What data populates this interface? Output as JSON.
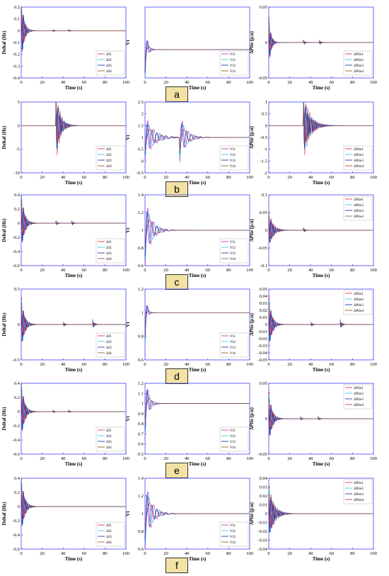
{
  "colors": [
    "#e6194b",
    "#22c7e8",
    "#1a1ab0",
    "#a0461e"
  ],
  "colors_v": [
    "#c21fc2",
    "#22c7e8",
    "#1a1ab0",
    "#a0461e"
  ],
  "rows": [
    {
      "tag": "a",
      "panels": [
        {
          "kind": "freq",
          "ylim": [
            -0.4,
            0.2
          ],
          "yticks": [
            -0.4,
            -0.3,
            -0.2,
            -0.1,
            0,
            0.1,
            0.2
          ],
          "ylabel": "Deltaf (Hz)",
          "xlabel": "Time (s)",
          "legend": [
            "Δf1",
            "Δf2",
            "Δf3",
            "Δf4"
          ],
          "events": [
            {
              "t": 0,
              "a": 0.35,
              "tau": 2.5
            },
            {
              "t": 30,
              "a": 0.015,
              "tau": 1.5
            },
            {
              "t": 45,
              "a": 0.015,
              "tau": 1.5
            }
          ]
        },
        {
          "kind": "volt",
          "ylim": [
            0.6,
            1.6
          ],
          "yticks": [],
          "ylabel": "Vt",
          "xlabel": "Time (s)",
          "legend": [
            "Vt1",
            "Vt2",
            "Vt3",
            "Vt4"
          ],
          "events": [
            {
              "t": 0,
              "a": 0.45,
              "tau": 2
            }
          ]
        },
        {
          "kind": "ptie",
          "ylim": [
            -0.05,
            0.05
          ],
          "yticks": [
            -0.05,
            0,
            0.05
          ],
          "ylabel": "ΔPtie (p.u)",
          "xlabel": "Time (s)",
          "legend": [
            "ΔPtie1",
            "ΔPtie2",
            "ΔPtie3",
            "ΔPtie4"
          ],
          "events": [
            {
              "t": 0,
              "a": 0.045,
              "tau": 2
            },
            {
              "t": 33,
              "a": 0.005,
              "tau": 1.5
            },
            {
              "t": 48,
              "a": 0.005,
              "tau": 1.5
            }
          ]
        }
      ]
    },
    {
      "tag": "b",
      "panels": [
        {
          "kind": "freq",
          "ylim": [
            -10,
            5
          ],
          "yticks": [
            -10,
            -5,
            0,
            5
          ],
          "ylabel": "Deltaf (Hz)",
          "xlabel": "Time (s)",
          "legend": [
            "Δf1",
            "Δf2",
            "Δf3",
            "Δf4"
          ],
          "events": [
            {
              "t": 33,
              "a": 9,
              "tau": 4
            }
          ]
        },
        {
          "kind": "volt",
          "ylim": [
            -0.5,
            2.5
          ],
          "yticks": [
            -0.5,
            0,
            0.5,
            1,
            1.5,
            2,
            2.5
          ],
          "ylabel": "Vt",
          "xlabel": "Time (s)",
          "legend": [
            "Vt1",
            "Vt2",
            "Vt3",
            "Vt4"
          ],
          "events": [
            {
              "t": 0,
              "a": 1,
              "tau": 8
            },
            {
              "t": 33,
              "a": 1.1,
              "tau": 6
            }
          ]
        },
        {
          "kind": "ptie",
          "ylim": [
            -2,
            1
          ],
          "yticks": [
            -2,
            -1.5,
            -1,
            -0.5,
            0,
            0.5,
            1
          ],
          "ylabel": "ΔPtie (p.u)",
          "xlabel": "Time (s)",
          "legend": [
            "ΔPtie1",
            "ΔPtie2",
            "ΔPtie3",
            "ΔPtie4"
          ],
          "events": [
            {
              "t": 33,
              "a": 1.6,
              "tau": 6
            }
          ]
        }
      ]
    },
    {
      "tag": "c",
      "panels": [
        {
          "kind": "freq",
          "ylim": [
            -0.6,
            0.4
          ],
          "yticks": [
            -0.6,
            -0.4,
            -0.2,
            0,
            0.2,
            0.4
          ],
          "ylabel": "Deltaf (Hz)",
          "xlabel": "Time (s)",
          "legend": [
            "Δf1",
            "Δf2",
            "Δf3",
            "Δf4"
          ],
          "events": [
            {
              "t": 0,
              "a": 0.5,
              "tau": 3
            },
            {
              "t": 33,
              "a": 0.05,
              "tau": 1.5
            },
            {
              "t": 48,
              "a": 0.05,
              "tau": 1.5
            }
          ]
        },
        {
          "kind": "volt",
          "ylim": [
            0.6,
            1.4
          ],
          "yticks": [
            0.6,
            0.8,
            1,
            1.2,
            1.4
          ],
          "ylabel": "Vt",
          "xlabel": "Time (s)",
          "legend": [
            "Vt1",
            "Vt2",
            "Vt3",
            "Vt4"
          ],
          "events": [
            {
              "t": 0,
              "a": 0.4,
              "tau": 6
            }
          ]
        },
        {
          "kind": "ptie",
          "ylim": [
            -0.1,
            0.1
          ],
          "yticks": [
            -0.1,
            -0.05,
            0,
            0.05,
            0.1
          ],
          "ylabel": "ΔPtie (p.u)",
          "xlabel": "Time (s)",
          "legend": [
            "ΔPtie1",
            "ΔPtie2",
            "ΔPtie3",
            "ΔPtie4"
          ],
          "events": [
            {
              "t": 0,
              "a": 0.06,
              "tau": 4
            },
            {
              "t": 33,
              "a": 0.01,
              "tau": 1.5
            }
          ]
        }
      ]
    },
    {
      "tag": "d",
      "panels": [
        {
          "kind": "freq",
          "ylim": [
            -0.5,
            0.5
          ],
          "yticks": [
            -0.5,
            0,
            0.5
          ],
          "ylabel": "Deltaf (Hz)",
          "xlabel": "Time (s)",
          "legend": [
            "Δf1",
            "Δf2",
            "Δf3",
            "Δf4"
          ],
          "events": [
            {
              "t": 0,
              "a": 0.45,
              "tau": 3
            },
            {
              "t": 40,
              "a": 0.05,
              "tau": 1.5
            },
            {
              "t": 68,
              "a": 0.1,
              "tau": 1.5
            }
          ]
        },
        {
          "kind": "volt",
          "ylim": [
            0.6,
            1.2
          ],
          "yticks": [
            0.6,
            0.8,
            1,
            1.2
          ],
          "ylabel": "Vt",
          "xlabel": "Time (s)",
          "legend": [
            "Vt1",
            "Vt2",
            "Vt3",
            "Vt4"
          ],
          "events": [
            {
              "t": 0,
              "a": 0.3,
              "tau": 1.5
            }
          ]
        },
        {
          "kind": "ptie",
          "ylim": [
            -0.05,
            0.05
          ],
          "yticks": [
            -0.05,
            -0.04,
            -0.03,
            -0.02,
            -0.01,
            0,
            0.01,
            0.02,
            0.03,
            0.04,
            0.05
          ],
          "ylabel": "ΔPtie (p.u)",
          "xlabel": "Time (s)",
          "legend": [
            "ΔPtie1",
            "ΔPtie2",
            "ΔPtie3",
            "ΔPtie4"
          ],
          "events": [
            {
              "t": 0,
              "a": 0.045,
              "tau": 3
            },
            {
              "t": 40,
              "a": 0.005,
              "tau": 1.5
            },
            {
              "t": 68,
              "a": 0.01,
              "tau": 1.5
            }
          ]
        }
      ]
    },
    {
      "tag": "e",
      "panels": [
        {
          "kind": "freq",
          "ylim": [
            -0.6,
            0.4
          ],
          "yticks": [
            -0.6,
            -0.4,
            -0.2,
            0,
            0.2,
            0.4
          ],
          "ylabel": "Deltaf (Hz)",
          "xlabel": "Time (s)",
          "legend": [
            "Δf1",
            "Δf2",
            "Δf3",
            "Δf4"
          ],
          "events": [
            {
              "t": 0,
              "a": 0.5,
              "tau": 3
            },
            {
              "t": 30,
              "a": 0.03,
              "tau": 1.5
            },
            {
              "t": 45,
              "a": 0.03,
              "tau": 1.5
            }
          ]
        },
        {
          "kind": "volt",
          "ylim": [
            0.5,
            1.2
          ],
          "yticks": [
            0.5,
            0.6,
            0.7,
            0.8,
            0.9,
            1,
            1.1,
            1.2
          ],
          "ylabel": "Vt",
          "xlabel": "Time (s)",
          "legend": [
            "Vt1",
            "Vt2",
            "Vt3",
            "Vt4"
          ],
          "events": [
            {
              "t": 0,
              "a": 0.35,
              "tau": 3
            }
          ]
        },
        {
          "kind": "ptie",
          "ylim": [
            -0.05,
            0.05
          ],
          "yticks": [
            -0.05,
            0,
            0.05
          ],
          "ylabel": "ΔPtie (p.u)",
          "xlabel": "Time (s)",
          "legend": [
            "ΔPtie1",
            "ΔPtie2",
            "ΔPtie3",
            "ΔPtie4"
          ],
          "events": [
            {
              "t": 0,
              "a": 0.045,
              "tau": 3
            },
            {
              "t": 30,
              "a": 0.004,
              "tau": 1.5
            },
            {
              "t": 47,
              "a": 0.004,
              "tau": 1.5
            }
          ]
        }
      ]
    },
    {
      "tag": "f",
      "panels": [
        {
          "kind": "freq",
          "ylim": [
            -0.6,
            0.4
          ],
          "yticks": [
            -0.6,
            -0.4,
            -0.2,
            0,
            0.2,
            0.4
          ],
          "ylabel": "Deltaf (Hz)",
          "xlabel": "Time (s)",
          "legend": [
            "Δf1",
            "Δf2",
            "Δf3",
            "Δf4"
          ],
          "events": [
            {
              "t": 0,
              "a": 0.5,
              "tau": 3
            }
          ]
        },
        {
          "kind": "volt",
          "ylim": [
            0.6,
            1.4
          ],
          "yticks": [
            0.6,
            0.8,
            1,
            1.2,
            1.4
          ],
          "ylabel": "Vt",
          "xlabel": "Time (s)",
          "legend": [
            "Vt1",
            "Vt2",
            "Vt3",
            "Vt4"
          ],
          "events": [
            {
              "t": 0,
              "a": 0.4,
              "tau": 6
            }
          ]
        },
        {
          "kind": "ptie",
          "ylim": [
            -0.04,
            0.04
          ],
          "yticks": [
            -0.04,
            -0.03,
            -0.02,
            -0.01,
            0,
            0.01,
            0.02,
            0.03,
            0.04
          ],
          "ylabel": "ΔPtie (p.u)",
          "xlabel": "Time (s)",
          "legend": [
            "ΔPtie1",
            "ΔPtie2",
            "ΔPtie3",
            "ΔPtie4"
          ],
          "events": [
            {
              "t": 0,
              "a": 0.035,
              "tau": 5
            }
          ]
        }
      ]
    }
  ],
  "chart_data": {
    "type": "line",
    "xlim": [
      0,
      100
    ],
    "xticks": [
      0,
      20,
      40,
      60,
      80,
      100
    ],
    "xlabel": "Time (s)",
    "grid": false,
    "legend_placement": "bottom-right (top-right for ΔPtie in rows c–f)"
  }
}
